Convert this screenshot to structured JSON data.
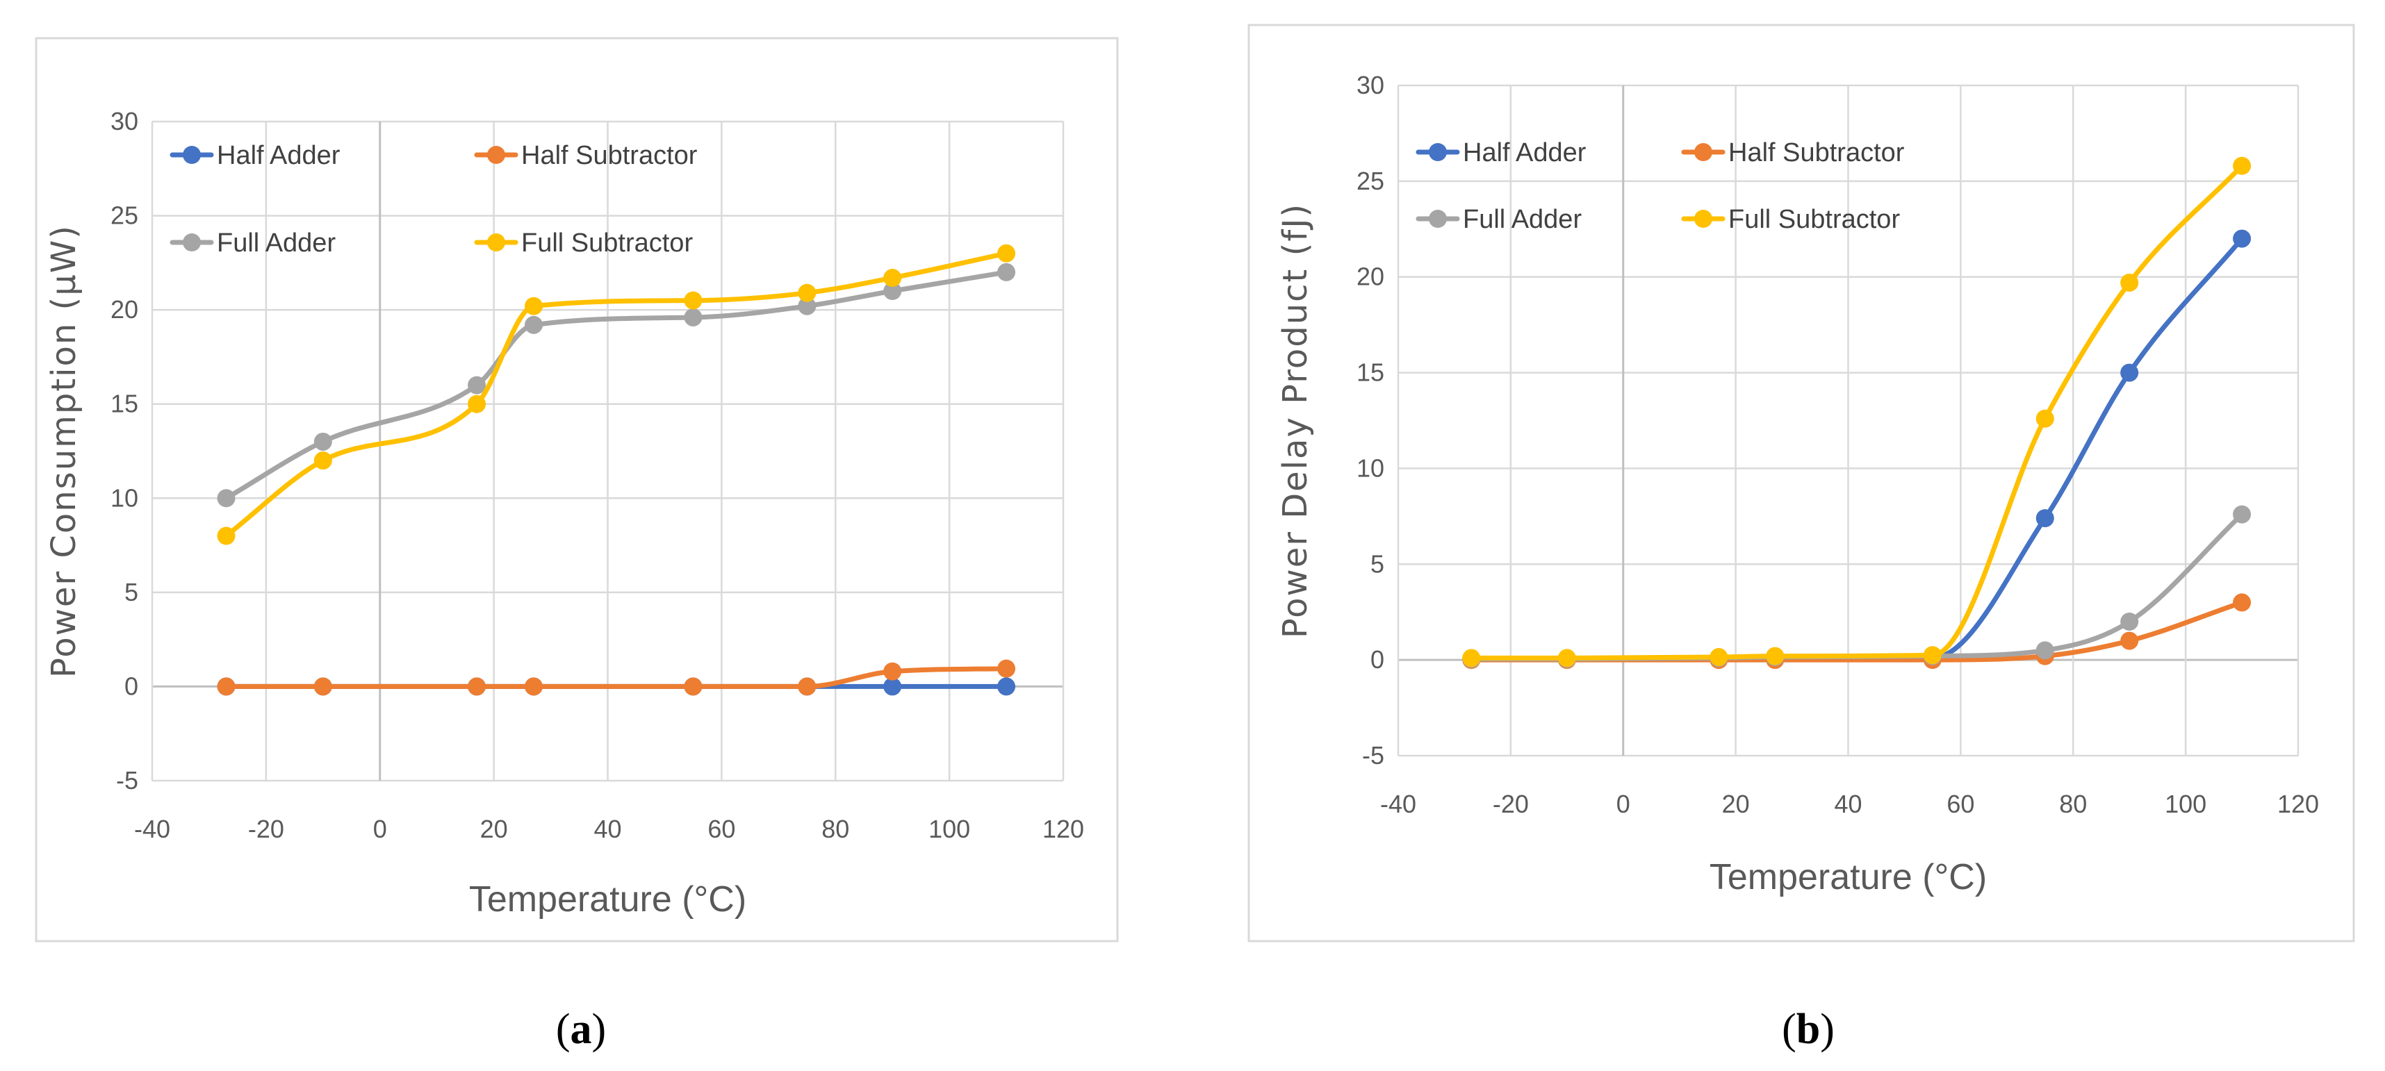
{
  "chart_data": [
    {
      "type": "line",
      "panel_label": "a",
      "title": "",
      "xlabel": "Temperature (°C)",
      "ylabel": "Power Consumption (μW)",
      "xlim": [
        -40,
        120
      ],
      "ylim": [
        -5,
        30
      ],
      "xticks": [
        -40,
        -20,
        0,
        20,
        40,
        60,
        80,
        100,
        120
      ],
      "yticks": [
        -5,
        0,
        5,
        10,
        15,
        20,
        25,
        30
      ],
      "grid": true,
      "legend_position": "top-left, inside",
      "series": [
        {
          "name": "Half Adder",
          "color": "#4472C4",
          "x": [
            -27,
            -10,
            17,
            27,
            55,
            75,
            90,
            110
          ],
          "y": [
            0,
            0,
            0,
            0,
            0,
            0,
            0,
            0
          ]
        },
        {
          "name": "Half Subtractor",
          "color": "#ED7D31",
          "x": [
            -27,
            -10,
            17,
            27,
            55,
            75,
            90,
            110
          ],
          "y": [
            0,
            0,
            0,
            0,
            0,
            0,
            0.8,
            0.95
          ]
        },
        {
          "name": "Full Adder",
          "color": "#A5A5A5",
          "x": [
            -27,
            -10,
            17,
            27,
            55,
            75,
            90,
            110
          ],
          "y": [
            10,
            13,
            16,
            19.2,
            19.6,
            20.2,
            21,
            22
          ]
        },
        {
          "name": "Full Subtractor",
          "color": "#FFC000",
          "x": [
            -27,
            -10,
            17,
            27,
            55,
            75,
            90,
            110
          ],
          "y": [
            8,
            12,
            15,
            20.2,
            20.5,
            20.9,
            21.7,
            23
          ]
        }
      ]
    },
    {
      "type": "line",
      "panel_label": "b",
      "title": "",
      "xlabel": "Temperature (°C)",
      "ylabel": "Power Delay Product (fJ)",
      "xlim": [
        -40,
        120
      ],
      "ylim": [
        -5,
        30
      ],
      "xticks": [
        -40,
        -20,
        0,
        20,
        40,
        60,
        80,
        100,
        120
      ],
      "yticks": [
        -5,
        0,
        5,
        10,
        15,
        20,
        25,
        30
      ],
      "grid": true,
      "legend_position": "top-left, inside",
      "series": [
        {
          "name": "Half Adder",
          "color": "#4472C4",
          "x": [
            -27,
            -10,
            17,
            27,
            55,
            75,
            90,
            110
          ],
          "y": [
            0.05,
            0.05,
            0.05,
            0.1,
            0.1,
            7.4,
            15,
            22
          ]
        },
        {
          "name": "Half Subtractor",
          "color": "#ED7D31",
          "x": [
            -27,
            -10,
            17,
            27,
            55,
            75,
            90,
            110
          ],
          "y": [
            0,
            0,
            0,
            0,
            0,
            0.2,
            1,
            3
          ]
        },
        {
          "name": "Full Adder",
          "color": "#A5A5A5",
          "x": [
            -27,
            -10,
            17,
            27,
            55,
            75,
            90,
            110
          ],
          "y": [
            0.05,
            0.05,
            0.1,
            0.15,
            0.2,
            0.5,
            2,
            7.6
          ]
        },
        {
          "name": "Full Subtractor",
          "color": "#FFC000",
          "x": [
            -27,
            -10,
            17,
            27,
            55,
            75,
            90,
            110
          ],
          "y": [
            0.1,
            0.1,
            0.15,
            0.2,
            0.25,
            12.6,
            19.7,
            25.8
          ]
        }
      ]
    }
  ],
  "captions": {
    "a": "(a)",
    "b": "(b)"
  }
}
